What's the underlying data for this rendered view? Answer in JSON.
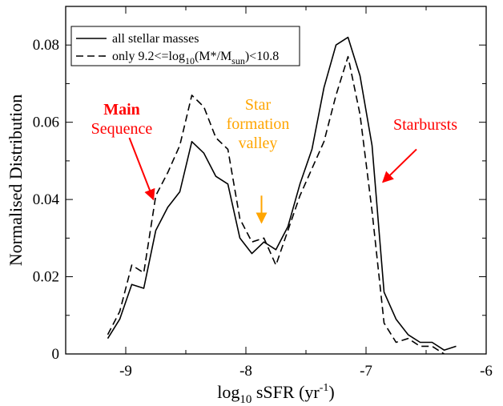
{
  "chart_data": {
    "type": "line",
    "title": "",
    "xlabel": {
      "base": "log",
      "sub": "10",
      "rest": " sSFR (yr",
      "sup": "-1",
      "end": ")"
    },
    "ylabel": "Normalised Distribution",
    "xlim": [
      -9.5,
      -6
    ],
    "ylim": [
      0,
      0.09
    ],
    "xticks": [
      {
        "value": -9,
        "label": "-9"
      },
      {
        "value": -8,
        "label": "-8"
      },
      {
        "value": -7,
        "label": "-7"
      },
      {
        "value": -6,
        "label": "-6"
      }
    ],
    "yticks": [
      {
        "value": 0,
        "label": "0"
      },
      {
        "value": 0.02,
        "label": "0.02"
      },
      {
        "value": 0.04,
        "label": "0.04"
      },
      {
        "value": 0.06,
        "label": "0.06"
      },
      {
        "value": 0.08,
        "label": "0.08"
      }
    ],
    "grid": false,
    "legend_position": "top-left",
    "series": [
      {
        "name": "all stellar masses",
        "style": "solid",
        "color": "#000000",
        "x": [
          -9.15,
          -9.05,
          -8.95,
          -8.85,
          -8.75,
          -8.65,
          -8.55,
          -8.45,
          -8.35,
          -8.25,
          -8.15,
          -8.05,
          -7.95,
          -7.85,
          -7.8,
          -7.75,
          -7.65,
          -7.55,
          -7.45,
          -7.35,
          -7.25,
          -7.15,
          -7.05,
          -6.95,
          -6.85,
          -6.75,
          -6.65,
          -6.55,
          -6.45,
          -6.35,
          -6.25
        ],
        "y": [
          0.004,
          0.009,
          0.018,
          0.017,
          0.032,
          0.038,
          0.042,
          0.055,
          0.052,
          0.046,
          0.044,
          0.03,
          0.026,
          0.029,
          0.028,
          0.027,
          0.033,
          0.044,
          0.053,
          0.069,
          0.08,
          0.082,
          0.072,
          0.054,
          0.016,
          0.009,
          0.005,
          0.003,
          0.003,
          0.001,
          0.002
        ]
      },
      {
        "name": "only 9.2<=log10(M*/Msun)<10.8",
        "style": "dashed",
        "color": "#000000",
        "x": [
          -9.15,
          -9.05,
          -8.95,
          -8.85,
          -8.75,
          -8.65,
          -8.55,
          -8.45,
          -8.35,
          -8.25,
          -8.15,
          -8.05,
          -7.95,
          -7.85,
          -7.75,
          -7.65,
          -7.55,
          -7.45,
          -7.35,
          -7.25,
          -7.15,
          -7.05,
          -6.95,
          -6.85,
          -6.75,
          -6.65,
          -6.55,
          -6.45,
          -6.35
        ],
        "y": [
          0.005,
          0.011,
          0.023,
          0.021,
          0.041,
          0.047,
          0.054,
          0.067,
          0.064,
          0.056,
          0.053,
          0.035,
          0.029,
          0.03,
          0.023,
          0.032,
          0.041,
          0.048,
          0.055,
          0.067,
          0.077,
          0.062,
          0.037,
          0.008,
          0.003,
          0.004,
          0.002,
          0.002,
          0.0
        ]
      }
    ],
    "legend": [
      {
        "parts": [
          {
            "t": "all stellar masses"
          }
        ]
      },
      {
        "parts": [
          {
            "t": "only 9.2<=log"
          },
          {
            "t": "10",
            "sub": true
          },
          {
            "t": "(M*/M"
          },
          {
            "t": "sun",
            "sub": true
          },
          {
            "t": ")<10.8"
          }
        ]
      }
    ],
    "annotations": [
      {
        "lines": [
          "Main",
          "Sequence"
        ],
        "color": "#ff0000",
        "weight": [
          "bold",
          "normal"
        ],
        "arrow_from": [
          -8.97,
          0.056
        ],
        "arrow_to": [
          -8.77,
          0.04
        ]
      },
      {
        "lines": [
          "Star",
          "formation",
          "valley"
        ],
        "color": "#ffa500",
        "weight": [
          "normal",
          "normal",
          "normal"
        ],
        "arrow_from": [
          -7.87,
          0.041
        ],
        "arrow_to": [
          -7.87,
          0.034
        ]
      },
      {
        "lines": [
          "Starbursts"
        ],
        "color": "#ff0000",
        "weight": [
          "normal"
        ],
        "arrow_from": [
          -6.58,
          0.053
        ],
        "arrow_to": [
          -6.86,
          0.0445
        ]
      }
    ]
  }
}
